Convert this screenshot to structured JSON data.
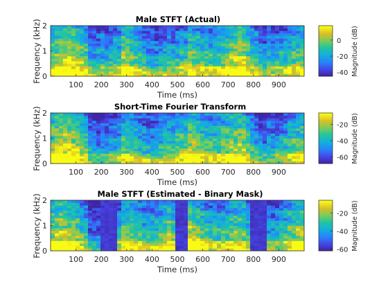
{
  "figure": {
    "background": "#ffffff"
  },
  "chart_data": [
    {
      "type": "heatmap",
      "title": "Male STFT (Actual)",
      "xlabel": "Time (ms)",
      "ylabel": "Frequency (kHz)",
      "xlim": [
        0,
        1000
      ],
      "ylim": [
        0,
        2
      ],
      "xticks": [
        100,
        200,
        300,
        400,
        500,
        600,
        700,
        800,
        900
      ],
      "yticks": [
        0,
        1,
        2
      ],
      "colorbar": {
        "label": "Magnitude (dB)",
        "clim": [
          -45,
          18
        ],
        "ticks": [
          0,
          -20,
          -40
        ]
      },
      "colormap": "parula",
      "seed": 7,
      "gaps": []
    },
    {
      "type": "heatmap",
      "title": "Short-Time Fourier Transform",
      "xlabel": "Time (ms)",
      "ylabel": "Frequency (kHz)",
      "xlim": [
        0,
        1000
      ],
      "ylim": [
        0,
        2
      ],
      "xticks": [
        100,
        200,
        300,
        400,
        500,
        600,
        700,
        800,
        900
      ],
      "yticks": [
        0,
        1,
        2
      ],
      "colorbar": {
        "label": "Magnitude (dB)",
        "clim": [
          -68,
          -6
        ],
        "ticks": [
          -20,
          -40,
          -60
        ]
      },
      "colormap": "parula",
      "seed": 23,
      "gaps": []
    },
    {
      "type": "heatmap",
      "title": "Male STFT (Estimated - Binary Mask)",
      "xlabel": "Time (ms)",
      "ylabel": "Frequency (kHz)",
      "xlim": [
        0,
        1000
      ],
      "ylim": [
        0,
        2
      ],
      "xticks": [
        100,
        200,
        300,
        400,
        500,
        600,
        700,
        800,
        900
      ],
      "yticks": [
        0,
        1,
        2
      ],
      "colorbar": {
        "label": "Magnitude (dB)",
        "clim": [
          -62,
          -6
        ],
        "ticks": [
          -20,
          -40,
          -60
        ]
      },
      "colormap": "parula",
      "seed": 41,
      "gaps": [
        [
          195,
          265
        ],
        [
          490,
          535
        ],
        [
          790,
          860
        ]
      ]
    }
  ]
}
